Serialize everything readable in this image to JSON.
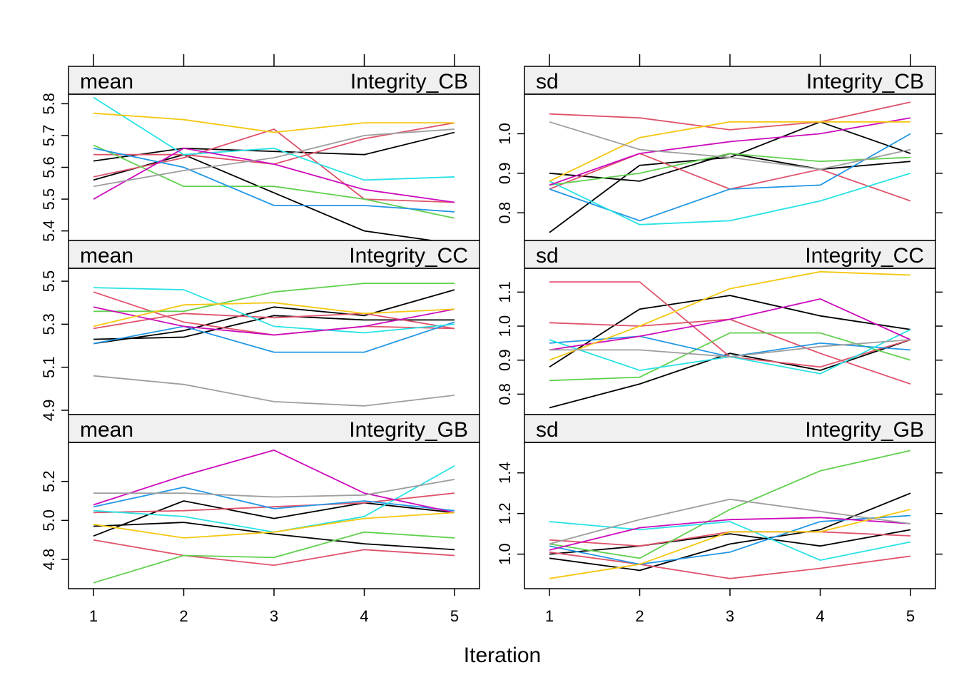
{
  "x_label": "Iteration",
  "chart_data": {
    "type": "line",
    "xlabel": "Iteration",
    "x": [
      1,
      2,
      3,
      4,
      5
    ],
    "grid": false,
    "legend": "none",
    "colors": [
      "#000000",
      "#DF536B",
      "#61D04F",
      "#2297E6",
      "#28E2E5",
      "#CD0BBC",
      "#F5C710",
      "#9E9E9E"
    ],
    "panels": [
      {
        "id": "mean-CB",
        "stat": "mean",
        "variable": "Integrity_CB",
        "ylim": [
          5.37,
          5.83
        ],
        "yticks": [
          5.4,
          5.5,
          5.6,
          5.7,
          5.8
        ],
        "series": [
          {
            "color": "#000000",
            "values": [
              5.56,
              5.64,
              5.52,
              5.4,
              5.36
            ]
          },
          {
            "color": "#000000",
            "values": [
              5.62,
              5.66,
              5.65,
              5.64,
              5.71
            ]
          },
          {
            "color": "#DF536B",
            "values": [
              5.57,
              5.63,
              5.72,
              5.5,
              5.49
            ]
          },
          {
            "color": "#DF536B",
            "values": [
              5.64,
              5.64,
              5.61,
              5.69,
              5.74
            ]
          },
          {
            "color": "#61D04F",
            "values": [
              5.67,
              5.54,
              5.54,
              5.5,
              5.44
            ]
          },
          {
            "color": "#2297E6",
            "values": [
              5.66,
              5.6,
              5.48,
              5.48,
              5.46
            ]
          },
          {
            "color": "#28E2E5",
            "values": [
              5.82,
              5.64,
              5.66,
              5.56,
              5.57
            ]
          },
          {
            "color": "#CD0BBC",
            "values": [
              5.5,
              5.66,
              5.61,
              5.53,
              5.49
            ]
          },
          {
            "color": "#F5C710",
            "values": [
              5.77,
              5.75,
              5.71,
              5.74,
              5.74
            ]
          },
          {
            "color": "#9E9E9E",
            "values": [
              5.54,
              5.59,
              5.63,
              5.7,
              5.72
            ]
          }
        ]
      },
      {
        "id": "sd-CB",
        "stat": "sd",
        "variable": "Integrity_CB",
        "ylim": [
          0.73,
          1.1
        ],
        "yticks": [
          0.8,
          0.9,
          1.0
        ],
        "series": [
          {
            "color": "#000000",
            "values": [
              0.75,
              0.92,
              0.94,
              1.03,
              0.95
            ]
          },
          {
            "color": "#000000",
            "values": [
              0.9,
              0.88,
              0.95,
              0.91,
              0.93
            ]
          },
          {
            "color": "#DF536B",
            "values": [
              1.05,
              1.04,
              1.01,
              1.03,
              1.08
            ]
          },
          {
            "color": "#DF536B",
            "values": [
              0.86,
              0.95,
              0.86,
              0.91,
              0.83
            ]
          },
          {
            "color": "#61D04F",
            "values": [
              0.87,
              0.9,
              0.95,
              0.93,
              0.94
            ]
          },
          {
            "color": "#2297E6",
            "values": [
              0.86,
              0.78,
              0.86,
              0.87,
              1.0
            ]
          },
          {
            "color": "#28E2E5",
            "values": [
              0.88,
              0.77,
              0.78,
              0.83,
              0.9
            ]
          },
          {
            "color": "#CD0BBC",
            "values": [
              0.87,
              0.95,
              0.98,
              1.0,
              1.04
            ]
          },
          {
            "color": "#F5C710",
            "values": [
              0.88,
              0.99,
              1.03,
              1.03,
              1.03
            ]
          },
          {
            "color": "#9E9E9E",
            "values": [
              1.03,
              0.96,
              0.94,
              0.91,
              0.96
            ]
          }
        ]
      },
      {
        "id": "mean-CC",
        "stat": "mean",
        "variable": "Integrity_CC",
        "ylim": [
          4.88,
          5.56
        ],
        "yticks": [
          4.9,
          5.1,
          5.3,
          5.5
        ],
        "series": [
          {
            "color": "#000000",
            "values": [
              5.21,
              5.27,
              5.38,
              5.34,
              5.46
            ]
          },
          {
            "color": "#000000",
            "values": [
              5.23,
              5.24,
              5.34,
              5.32,
              5.32
            ]
          },
          {
            "color": "#DF536B",
            "values": [
              5.45,
              5.31,
              5.25,
              5.29,
              5.28
            ]
          },
          {
            "color": "#DF536B",
            "values": [
              5.28,
              5.35,
              5.33,
              5.35,
              5.28
            ]
          },
          {
            "color": "#61D04F",
            "values": [
              5.36,
              5.36,
              5.45,
              5.49,
              5.49
            ]
          },
          {
            "color": "#2297E6",
            "values": [
              5.21,
              5.29,
              5.17,
              5.17,
              5.31
            ]
          },
          {
            "color": "#28E2E5",
            "values": [
              5.47,
              5.46,
              5.29,
              5.26,
              5.3
            ]
          },
          {
            "color": "#CD0BBC",
            "values": [
              5.38,
              5.29,
              5.25,
              5.29,
              5.37
            ]
          },
          {
            "color": "#F5C710",
            "values": [
              5.29,
              5.39,
              5.4,
              5.35,
              5.37
            ]
          },
          {
            "color": "#9E9E9E",
            "values": [
              5.06,
              5.02,
              4.94,
              4.92,
              4.97
            ]
          }
        ]
      },
      {
        "id": "sd-CC",
        "stat": "sd",
        "variable": "Integrity_CC",
        "ylim": [
          0.74,
          1.17
        ],
        "yticks": [
          0.8,
          0.9,
          1.0,
          1.1
        ],
        "series": [
          {
            "color": "#000000",
            "values": [
              0.76,
              0.83,
              0.92,
              0.87,
              0.96
            ]
          },
          {
            "color": "#000000",
            "values": [
              0.88,
              1.05,
              1.09,
              1.03,
              0.99
            ]
          },
          {
            "color": "#DF536B",
            "values": [
              1.13,
              1.13,
              0.91,
              0.88,
              0.96
            ]
          },
          {
            "color": "#DF536B",
            "values": [
              1.01,
              1.0,
              1.02,
              0.92,
              0.83
            ]
          },
          {
            "color": "#61D04F",
            "values": [
              0.84,
              0.85,
              0.98,
              0.98,
              0.9
            ]
          },
          {
            "color": "#2297E6",
            "values": [
              0.95,
              0.97,
              0.91,
              0.95,
              0.93
            ]
          },
          {
            "color": "#28E2E5",
            "values": [
              0.96,
              0.87,
              0.91,
              0.86,
              0.99
            ]
          },
          {
            "color": "#CD0BBC",
            "values": [
              0.93,
              0.97,
              1.02,
              1.08,
              0.96
            ]
          },
          {
            "color": "#F5C710",
            "values": [
              0.9,
              1.0,
              1.11,
              1.16,
              1.15
            ]
          },
          {
            "color": "#9E9E9E",
            "values": [
              0.93,
              0.93,
              0.91,
              0.94,
              0.96
            ]
          }
        ]
      },
      {
        "id": "mean-GB",
        "stat": "mean",
        "variable": "Integrity_GB",
        "ylim": [
          4.65,
          5.4
        ],
        "yticks": [
          4.8,
          5.0,
          5.2
        ],
        "series": [
          {
            "color": "#000000",
            "values": [
              4.92,
              5.1,
              5.01,
              5.09,
              5.04
            ]
          },
          {
            "color": "#000000",
            "values": [
              4.97,
              4.99,
              4.93,
              4.88,
              4.85
            ]
          },
          {
            "color": "#DF536B",
            "values": [
              4.9,
              4.82,
              4.77,
              4.85,
              4.82
            ]
          },
          {
            "color": "#DF536B",
            "values": [
              5.04,
              5.05,
              5.07,
              5.09,
              5.14
            ]
          },
          {
            "color": "#61D04F",
            "values": [
              4.68,
              4.82,
              4.81,
              4.94,
              4.91
            ]
          },
          {
            "color": "#2297E6",
            "values": [
              5.07,
              5.17,
              5.06,
              5.1,
              5.05
            ]
          },
          {
            "color": "#28E2E5",
            "values": [
              5.05,
              5.02,
              4.94,
              5.02,
              5.28
            ]
          },
          {
            "color": "#CD0BBC",
            "values": [
              5.08,
              5.23,
              5.36,
              5.14,
              5.04
            ]
          },
          {
            "color": "#F5C710",
            "values": [
              4.98,
              4.91,
              4.94,
              5.01,
              5.04
            ]
          },
          {
            "color": "#9E9E9E",
            "values": [
              5.14,
              5.14,
              5.12,
              5.13,
              5.21
            ]
          }
        ]
      },
      {
        "id": "sd-GB",
        "stat": "sd",
        "variable": "Integrity_GB",
        "ylim": [
          0.83,
          1.55
        ],
        "yticks": [
          1.0,
          1.2,
          1.4
        ],
        "series": [
          {
            "color": "#000000",
            "values": [
              0.98,
              0.92,
              1.05,
              1.12,
              1.3
            ]
          },
          {
            "color": "#000000",
            "values": [
              1.0,
              1.04,
              1.1,
              1.04,
              1.12
            ]
          },
          {
            "color": "#DF536B",
            "values": [
              1.07,
              1.04,
              1.11,
              1.11,
              1.09
            ]
          },
          {
            "color": "#DF536B",
            "values": [
              1.01,
              0.95,
              0.88,
              0.93,
              0.99
            ]
          },
          {
            "color": "#61D04F",
            "values": [
              1.05,
              0.98,
              1.22,
              1.41,
              1.51
            ]
          },
          {
            "color": "#2297E6",
            "values": [
              1.04,
              0.95,
              1.01,
              1.16,
              1.19
            ]
          },
          {
            "color": "#28E2E5",
            "values": [
              1.16,
              1.12,
              1.16,
              0.97,
              1.06
            ]
          },
          {
            "color": "#CD0BBC",
            "values": [
              1.02,
              1.13,
              1.17,
              1.18,
              1.15
            ]
          },
          {
            "color": "#F5C710",
            "values": [
              0.88,
              0.95,
              1.11,
              1.11,
              1.22
            ]
          },
          {
            "color": "#9E9E9E",
            "values": [
              1.05,
              1.17,
              1.27,
              1.21,
              1.15
            ]
          }
        ]
      }
    ]
  }
}
